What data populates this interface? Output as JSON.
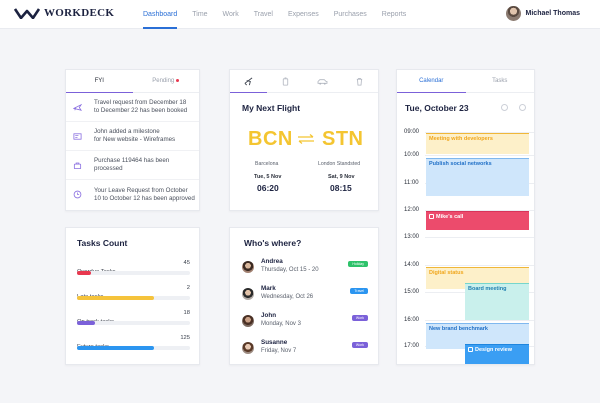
{
  "app": {
    "name": "WORKDECK"
  },
  "nav": {
    "items": [
      {
        "label": "Dashboard",
        "active": true
      },
      {
        "label": "Time"
      },
      {
        "label": "Work"
      },
      {
        "label": "Travel"
      },
      {
        "label": "Expenses"
      },
      {
        "label": "Purchases"
      },
      {
        "label": "Reports"
      }
    ]
  },
  "user": {
    "name": "Michael Thomas"
  },
  "fyi": {
    "tabs": [
      {
        "label": "FYI",
        "active": true
      },
      {
        "label": "Pending",
        "has_dot": true
      }
    ],
    "items": [
      {
        "icon": "plane-icon",
        "text_line1": "Travel request from December 18",
        "text_line2": "to December 22 has been booked"
      },
      {
        "icon": "milestone-icon",
        "text_line1": "John added a milestone",
        "text_line2": "for New website - Wireframes"
      },
      {
        "icon": "purchase-icon",
        "text_line1": "Purchase 119464 has been",
        "text_line2": "processed"
      },
      {
        "icon": "clock-icon",
        "text_line1": "Your Leave Request from October",
        "text_line2": "10 to October 12 has been approved"
      }
    ]
  },
  "flight": {
    "tabs": [
      {
        "icon": "plane-icon",
        "active": true
      },
      {
        "icon": "luggage-icon"
      },
      {
        "icon": "car-icon"
      },
      {
        "icon": "trash-icon"
      }
    ],
    "title": "My Next Flight",
    "from": {
      "code": "BCN",
      "city": "Barcelona",
      "date": "Tue, 5 Nov",
      "time": "06:20"
    },
    "to": {
      "code": "STN",
      "city": "London Standsted",
      "date": "Sat, 9 Nov",
      "time": "08:15"
    },
    "accent": "#f4c531"
  },
  "tasks": {
    "title": "Tasks Count",
    "max": 125,
    "items": [
      {
        "label": "Overdue Tasks",
        "count": 45,
        "fill_fraction": 0.12,
        "color": "#e8384f"
      },
      {
        "label": "Late tasks",
        "count": 2,
        "fill_fraction": 0.68,
        "color": "#f5c33b"
      },
      {
        "label": "On track tasks",
        "count": 18,
        "fill_fraction": 0.16,
        "color": "#7b61d9"
      },
      {
        "label": "Future tasks",
        "count": 125,
        "fill_fraction": 0.68,
        "color": "#2b95f0"
      }
    ]
  },
  "who": {
    "title": "Who's where?",
    "people": [
      {
        "name": "Andrea",
        "date": "Thursday, Oct 15 - 20",
        "badge": "Holiday",
        "badge_color": "#2ec26a"
      },
      {
        "name": "Mark",
        "date": "Wednesday, Oct 26",
        "badge": "Travel",
        "badge_color": "#2b95f0"
      },
      {
        "name": "John",
        "date": "Monday, Nov 3",
        "badge": "Work",
        "badge_color": "#7b61d9"
      },
      {
        "name": "Susanne",
        "date": "Friday, Nov 7",
        "badge": "Work",
        "badge_color": "#7b61d9"
      }
    ]
  },
  "calendar": {
    "tabs": [
      {
        "label": "Calendar",
        "active": true
      },
      {
        "label": "Tasks"
      }
    ],
    "date": "Tue, October 23",
    "hours": [
      "09:00",
      "10:00",
      "11:00",
      "12:00",
      "13:00",
      "14:00",
      "15:00",
      "16:00",
      "17:00"
    ],
    "events": [
      {
        "title": "Meeting with developers",
        "style": "yellow"
      },
      {
        "title": "Publish social networks",
        "style": "blue"
      },
      {
        "title": "Mike's call",
        "style": "red",
        "checkbox": true
      },
      {
        "title": "Digital status",
        "style": "yellow"
      },
      {
        "title": "Board meeting",
        "style": "teal"
      },
      {
        "title": "New brand benchmark",
        "style": "blue"
      },
      {
        "title": "Design review",
        "style": "solid",
        "checkbox": true
      }
    ]
  }
}
